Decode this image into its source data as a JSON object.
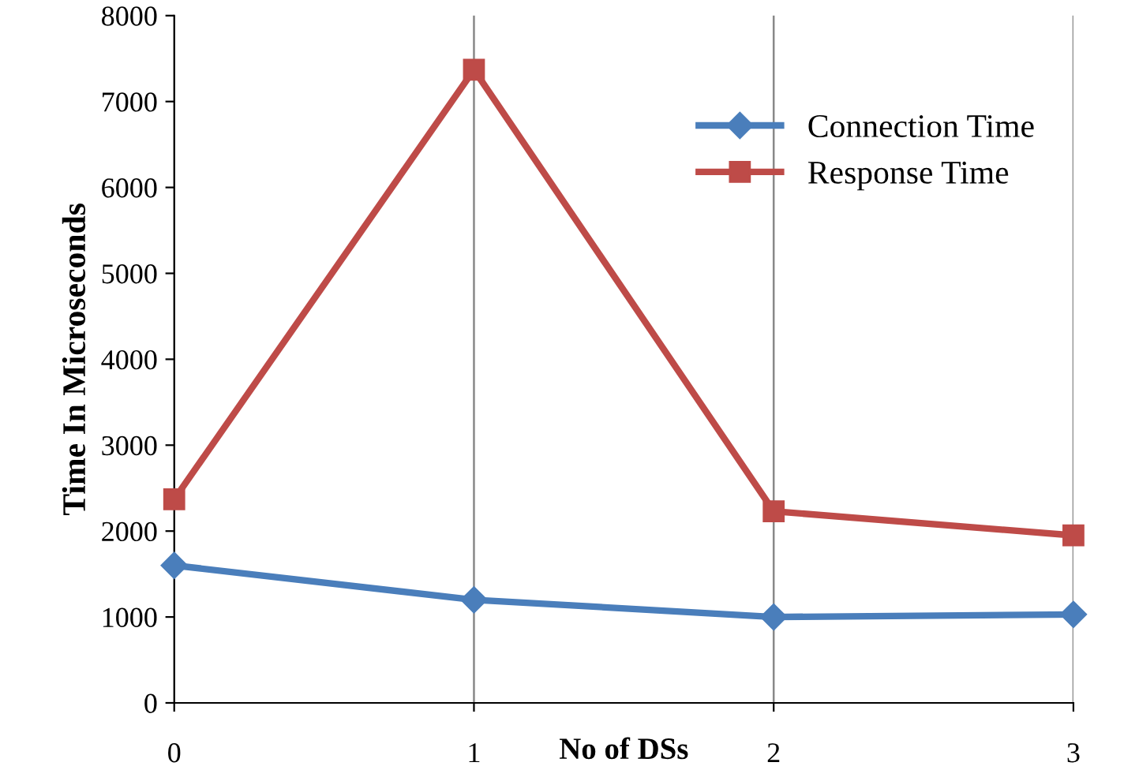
{
  "chart_data": {
    "type": "line",
    "xlabel": "No of DSs",
    "ylabel": "Time In Microseconds",
    "x": [
      0,
      1,
      2,
      3
    ],
    "xlim": [
      0,
      3
    ],
    "xticks": [
      0,
      1,
      2,
      3
    ],
    "ylim": [
      0,
      8000
    ],
    "yticks": [
      0,
      1000,
      2000,
      3000,
      4000,
      5000,
      6000,
      7000,
      8000
    ],
    "grid": "x",
    "legend": "top right",
    "line_style": "solid",
    "series": [
      {
        "name": "Connection Time",
        "color": "#4a7ebb",
        "marker": "diamond",
        "values": [
          1600,
          1200,
          1000,
          1030
        ]
      },
      {
        "name": "Response Time",
        "color": "#be4b48",
        "marker": "square",
        "values": [
          2370,
          7370,
          2230,
          1950
        ]
      }
    ]
  }
}
